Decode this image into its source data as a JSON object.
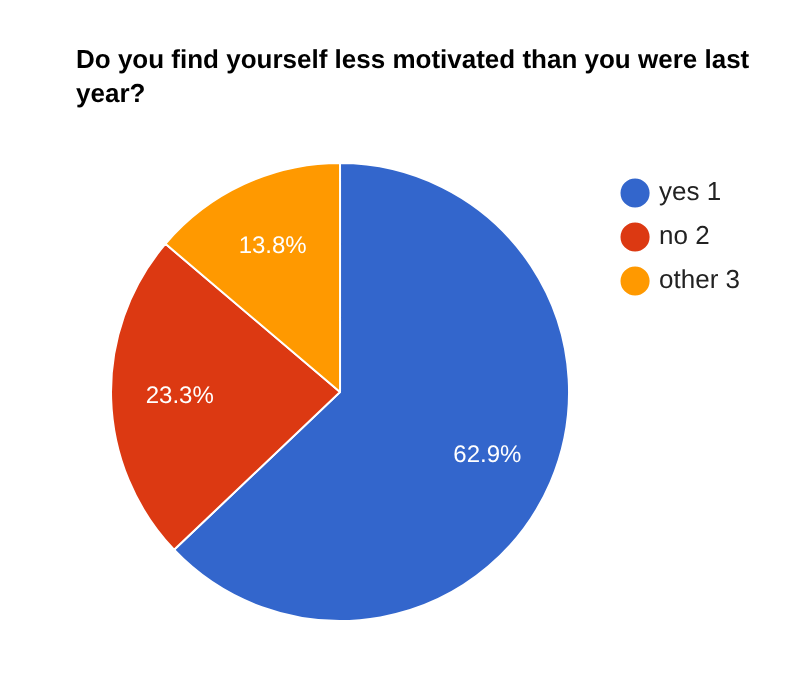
{
  "chart_data": {
    "type": "pie",
    "title": "Do you find yourself less motivated than you were last year?",
    "categories": [
      "yes 1",
      "no 2",
      "other 3"
    ],
    "values": [
      62.9,
      23.3,
      13.8
    ],
    "colors": [
      "#3366cc",
      "#dc3912",
      "#ff9900"
    ],
    "value_labels": [
      "62.9%",
      "23.3%",
      "13.8%"
    ],
    "legend": "top right"
  }
}
